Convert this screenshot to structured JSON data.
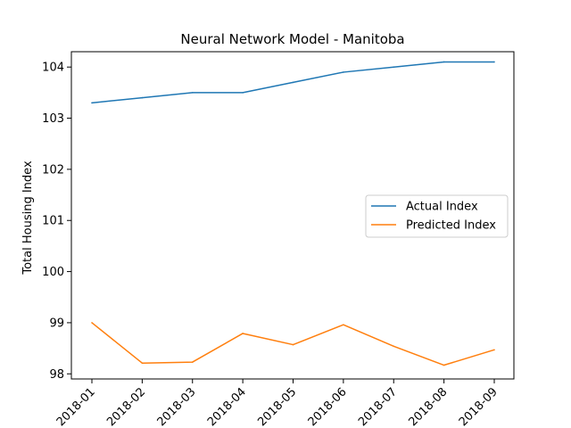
{
  "chart_data": {
    "type": "line",
    "title": "Neural Network Model - Manitoba",
    "xlabel": "",
    "ylabel": "Total Housing Index",
    "categories": [
      "2018-01",
      "2018-02",
      "2018-03",
      "2018-04",
      "2018-05",
      "2018-06",
      "2018-07",
      "2018-08",
      "2018-09"
    ],
    "ylim": [
      97.9,
      104.3
    ],
    "yticks": [
      "98",
      "99",
      "100",
      "101",
      "102",
      "103",
      "104"
    ],
    "series": [
      {
        "name": "Actual Index",
        "color": "#1f77b4",
        "values": [
          103.3,
          103.4,
          103.5,
          103.5,
          103.7,
          103.9,
          104.0,
          104.1,
          104.1
        ]
      },
      {
        "name": "Predicted Index",
        "color": "#ff7f0e",
        "values": [
          99.0,
          98.21,
          98.23,
          98.79,
          98.57,
          98.96,
          98.54,
          98.17,
          98.47
        ]
      }
    ],
    "grid": false,
    "legend_position": "center-right"
  }
}
